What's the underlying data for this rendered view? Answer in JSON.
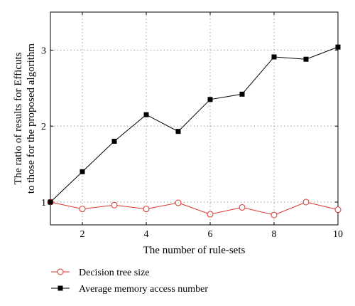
{
  "chart_data": {
    "type": "line",
    "xlabel": "The number of rule-sets",
    "ylabel_lines": [
      "The ratio of results for Efficuts",
      "to those for the proposed algorithm"
    ],
    "xlim": [
      1,
      10
    ],
    "ylim": [
      0.7,
      3.5
    ],
    "xticks": [
      2,
      4,
      6,
      8,
      10
    ],
    "yticks": [
      1,
      2,
      3
    ],
    "x_tick_labels": [
      "2",
      "4",
      "6",
      "8",
      "10"
    ],
    "y_tick_labels": [
      "1",
      "2",
      "3"
    ],
    "grid": "dotted",
    "legend_position": "bottom",
    "x": [
      1,
      2,
      3,
      4,
      5,
      6,
      7,
      8,
      9,
      10
    ],
    "series": [
      {
        "name": "Decision tree size",
        "color": "#d9342b",
        "marker": "open-circle",
        "values": [
          1.0,
          0.91,
          0.96,
          0.91,
          0.99,
          0.84,
          0.93,
          0.83,
          1.0,
          0.9
        ]
      },
      {
        "name": "Average memory access number",
        "color": "#000000",
        "marker": "filled-square",
        "values": [
          1.0,
          1.4,
          1.8,
          2.15,
          1.93,
          2.35,
          2.42,
          2.91,
          2.88,
          3.04
        ]
      }
    ]
  }
}
